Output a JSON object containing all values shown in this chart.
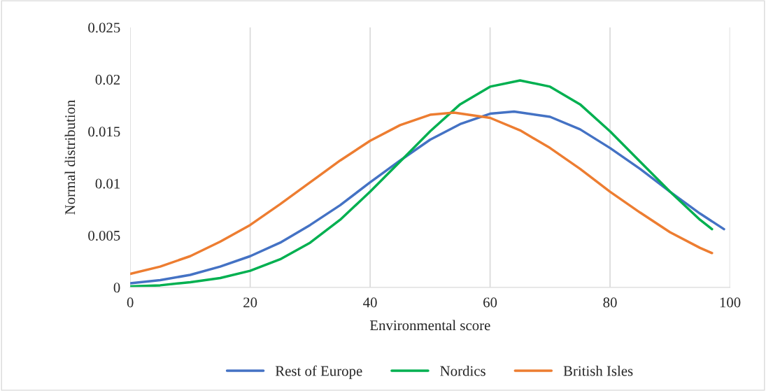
{
  "chart_data": {
    "type": "line",
    "xlabel": "Environmental score",
    "ylabel": "Normal distribution",
    "xlim": [
      0,
      100
    ],
    "xticks": [
      0,
      20,
      40,
      60,
      80,
      100
    ],
    "ylim": [
      0,
      0.025
    ],
    "yticks": [
      0,
      0.005,
      0.01,
      0.015,
      0.02,
      0.025
    ],
    "grid": "x",
    "legend": "bottom",
    "marker": "none",
    "line_style": "solid",
    "series": [
      {
        "name": "Rest of Europe",
        "color": "#4472c4",
        "x": [
          0,
          5,
          10,
          15,
          20,
          25,
          30,
          35,
          40,
          45,
          50,
          55,
          60,
          64,
          70,
          75,
          80,
          85,
          90,
          95,
          99
        ],
        "values": [
          0.0004,
          0.0007,
          0.0012,
          0.002,
          0.003,
          0.0043,
          0.006,
          0.0079,
          0.0101,
          0.0122,
          0.0142,
          0.0157,
          0.0167,
          0.0169,
          0.0164,
          0.0152,
          0.0134,
          0.0114,
          0.0092,
          0.0071,
          0.0056
        ]
      },
      {
        "name": "Nordics",
        "color": "#00b050",
        "x": [
          0,
          5,
          10,
          15,
          20,
          25,
          30,
          35,
          40,
          45,
          50,
          55,
          60,
          65,
          70,
          75,
          80,
          85,
          90,
          95,
          97
        ],
        "values": [
          0.0001,
          0.0002,
          0.0005,
          0.0009,
          0.0016,
          0.0027,
          0.0043,
          0.0065,
          0.0092,
          0.0121,
          0.015,
          0.0176,
          0.0193,
          0.0199,
          0.0193,
          0.0176,
          0.015,
          0.0121,
          0.0092,
          0.0065,
          0.0056
        ]
      },
      {
        "name": "British Isles",
        "color": "#ed7d31",
        "x": [
          0,
          5,
          10,
          15,
          20,
          25,
          30,
          35,
          40,
          45,
          50,
          54,
          60,
          65,
          70,
          75,
          80,
          85,
          90,
          95,
          97
        ],
        "values": [
          0.0013,
          0.002,
          0.003,
          0.0044,
          0.006,
          0.008,
          0.0101,
          0.0122,
          0.0141,
          0.0156,
          0.0166,
          0.0168,
          0.0163,
          0.0151,
          0.0134,
          0.0114,
          0.0092,
          0.0072,
          0.0053,
          0.0038,
          0.0033
        ]
      }
    ]
  }
}
